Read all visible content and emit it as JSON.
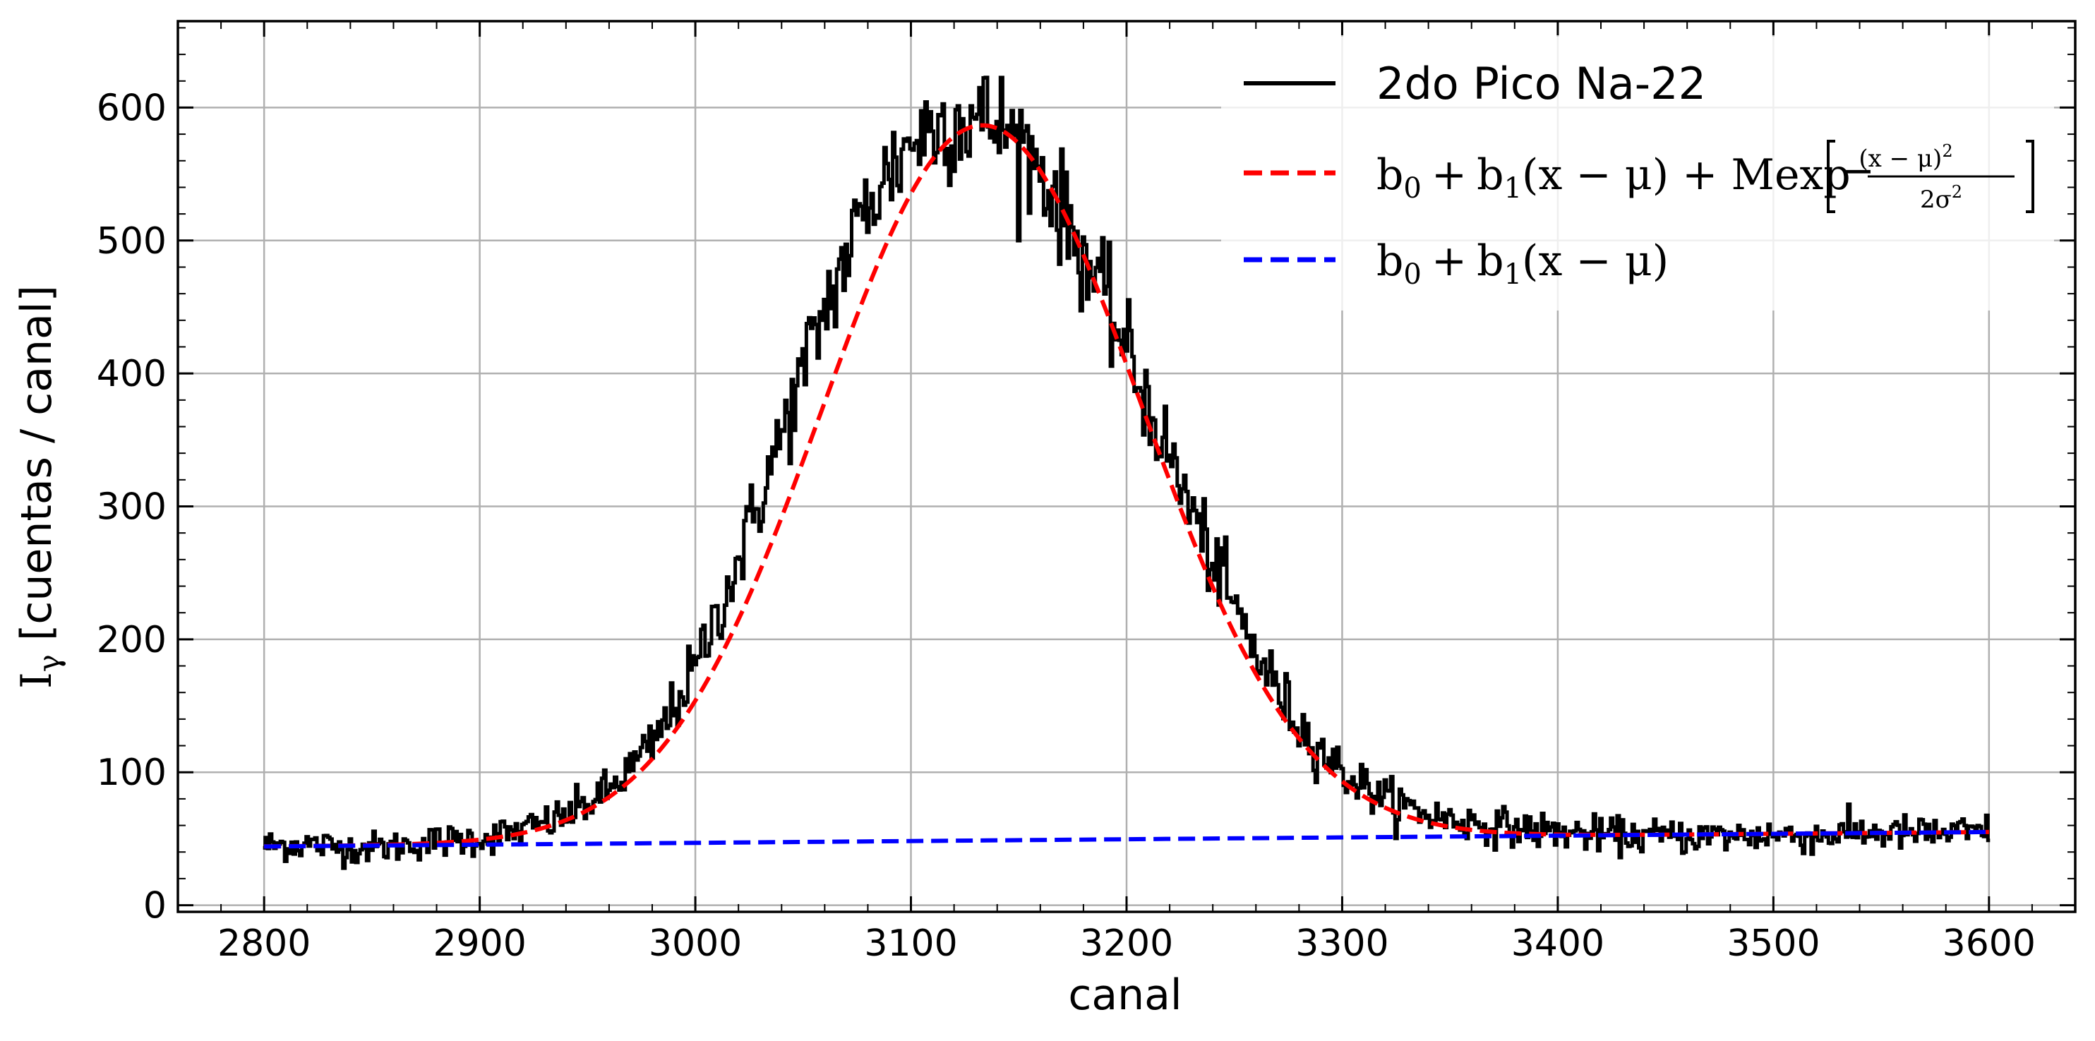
{
  "chart_data": {
    "type": "line",
    "title": "",
    "xlabel": "canal",
    "ylabel": "I",
    "ylabel_subscript": "γ",
    "ylabel_rest": " [cuentas / canal]",
    "xlim": [
      2760,
      3640
    ],
    "ylim": [
      -5,
      665
    ],
    "xticks": [
      2800,
      2900,
      3000,
      3100,
      3200,
      3300,
      3400,
      3500,
      3600
    ],
    "yticks": [
      0,
      100,
      200,
      300,
      400,
      500,
      600
    ],
    "grid": true,
    "legend_position": "top-right",
    "x_range": [
      2800,
      3600
    ],
    "series": [
      {
        "name": "2do Pico Na-22",
        "style": "solid",
        "color": "#000000",
        "x": [
          2800,
          2820,
          2840,
          2860,
          2880,
          2900,
          2920,
          2940,
          2960,
          2980,
          3000,
          3020,
          3040,
          3060,
          3080,
          3100,
          3110,
          3120,
          3130,
          3140,
          3150,
          3160,
          3180,
          3200,
          3220,
          3240,
          3260,
          3280,
          3300,
          3320,
          3340,
          3360,
          3380,
          3400,
          3420,
          3440,
          3460,
          3480,
          3500,
          3520,
          3540,
          3560,
          3580,
          3600
        ],
        "values": [
          45,
          46,
          43,
          44,
          48,
          50,
          56,
          67,
          86,
          120,
          178,
          259,
          353,
          448,
          528,
          575,
          585,
          590,
          592,
          588,
          575,
          555,
          490,
          418,
          337,
          259,
          190,
          135,
          100,
          80,
          68,
          62,
          58,
          55,
          53,
          52,
          52,
          52,
          53,
          52,
          55,
          54,
          54,
          55
        ]
      },
      {
        "name": "b0 + b1(x − μ) + Mexp[−(x − μ)²/2σ²]",
        "style": "dashed",
        "color": "#ff0000",
        "model": {
          "b0": 48.7,
          "b1": 0.0136,
          "mu": 3133,
          "M": 538,
          "sigma": 74
        }
      },
      {
        "name": "b0 + b1(x − μ)",
        "style": "dashed",
        "color": "#0000ff",
        "model": {
          "b0": 48.7,
          "b1": 0.0136,
          "mu": 3133
        }
      }
    ],
    "legend": {
      "entry1": "2do Pico Na-22",
      "entry2": {
        "b0": "b",
        "s0": "0",
        "plus1": "+",
        "b1": "b",
        "s1": "1",
        "term": "(x − μ) + Mexp",
        "num": "(x − μ)",
        "num_exp": "2",
        "den": "2σ",
        "den_exp": "2",
        "minus": "−"
      },
      "entry3": {
        "b0": "b",
        "s0": "0",
        "plus1": "+",
        "b1": "b",
        "s1": "1",
        "term": "(x − μ)"
      }
    }
  }
}
